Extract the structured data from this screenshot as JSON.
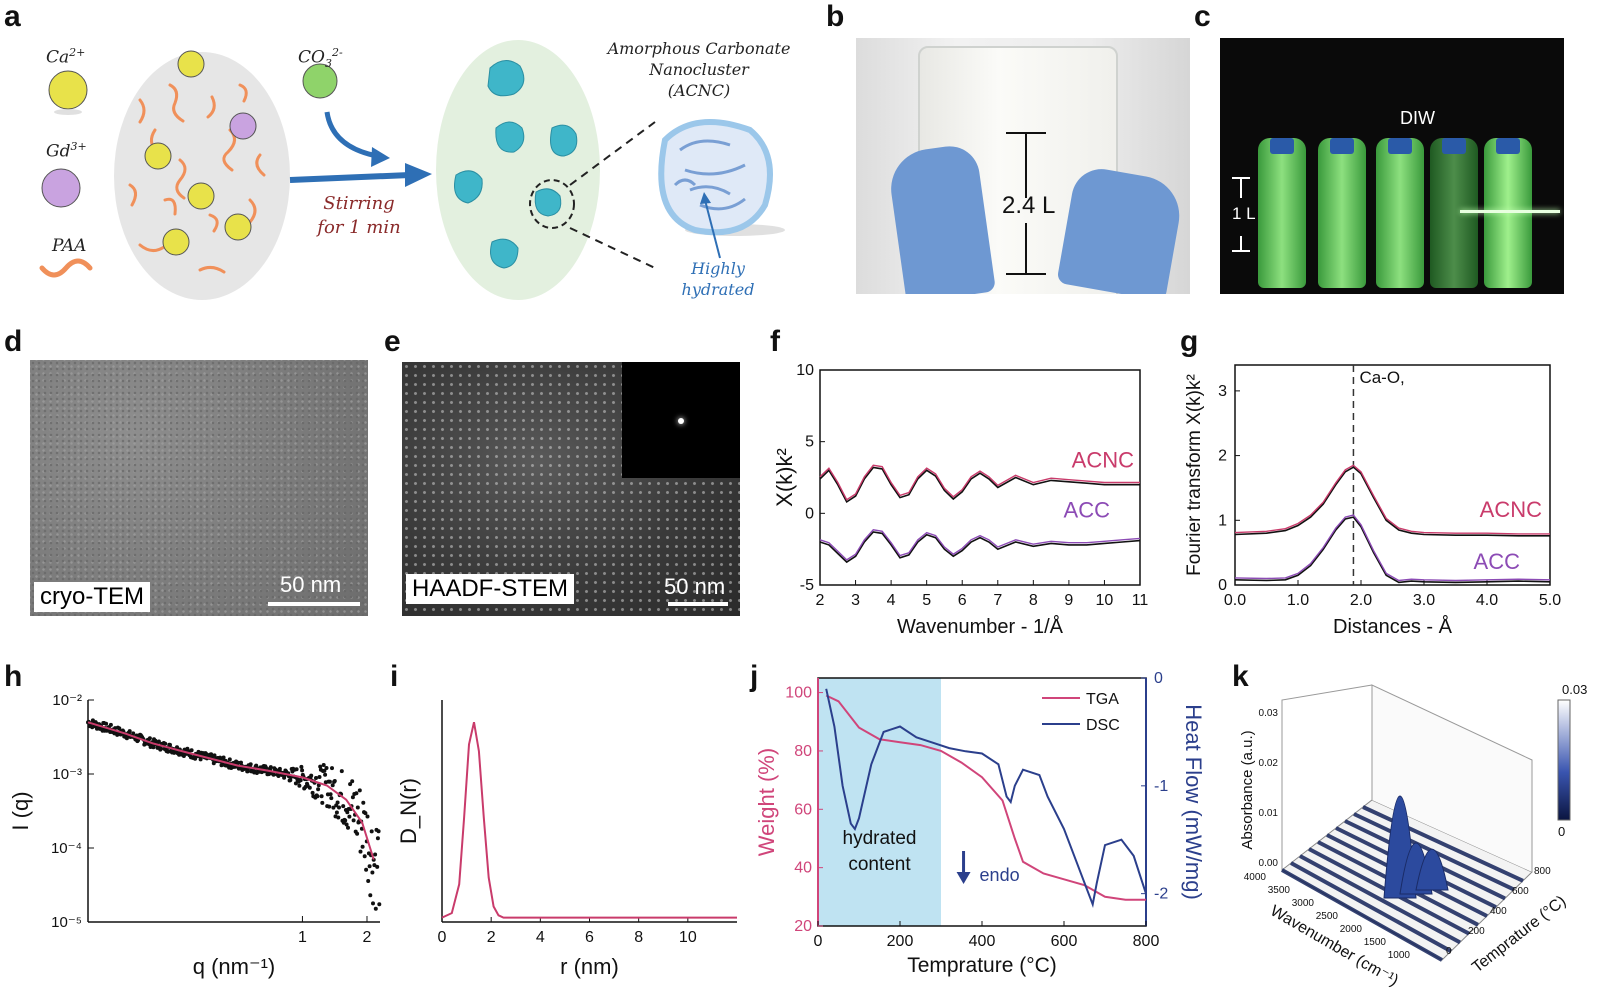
{
  "panels": {
    "a": "a",
    "b": "b",
    "c": "c",
    "d": "d",
    "e": "e",
    "f": "f",
    "g": "g",
    "h": "h",
    "i": "i",
    "j": "j",
    "k": "k"
  },
  "panel_a": {
    "ca": "Ca",
    "ca_sup": "2+",
    "gd": "Gd",
    "gd_sup": "3+",
    "paa": "PAA",
    "co3": "CO",
    "co3_sub": "3",
    "co3_sup": "2-",
    "stir_line1": "Stirring",
    "stir_line2": "for 1 min",
    "acnc_line1": "Amorphous Carbonate",
    "acnc_line2": "Nanocluster",
    "acnc_line3": "(ACNC)",
    "hyd_line1": "Highly",
    "hyd_line2": "hydrated",
    "colors": {
      "ca": "#e8e24a",
      "gd": "#c9a3e0",
      "co3": "#8fd36a",
      "paa": "#f0905a",
      "cluster": "#3fb6c9",
      "arrow": "#2e6fb5"
    }
  },
  "panel_b": {
    "volume": "2.4 L"
  },
  "panel_c": {
    "label": "DIW",
    "volume": "1 L"
  },
  "panel_d": {
    "label": "cryo-TEM",
    "scale": "50 nm"
  },
  "panel_e": {
    "label": "HAADF-STEM",
    "scale": "50 nm"
  },
  "chart_data": [
    {
      "id": "f",
      "type": "line",
      "xlabel": "Wavenumber - 1/Å",
      "ylabel": "X(k)k²",
      "xlim": [
        2,
        11
      ],
      "ylim": [
        -5,
        10
      ],
      "xticks": [
        "2",
        "3",
        "4",
        "5",
        "6",
        "7",
        "8",
        "9",
        "10",
        "11"
      ],
      "yticks": [
        "-5",
        "0",
        "5",
        "10"
      ],
      "series": [
        {
          "name": "ACNC",
          "color": "#c93b6b",
          "x": [
            2.0,
            2.25,
            2.5,
            2.75,
            3.0,
            3.25,
            3.5,
            3.75,
            4.0,
            4.25,
            4.5,
            4.75,
            5.0,
            5.25,
            5.5,
            5.75,
            6.0,
            6.25,
            6.5,
            6.75,
            7.0,
            7.5,
            8.0,
            8.5,
            9.0,
            9.5,
            10.0,
            10.5,
            11.0
          ],
          "values": [
            2.4,
            3.0,
            2.0,
            0.8,
            1.2,
            2.4,
            3.2,
            3.1,
            2.0,
            1.1,
            1.3,
            2.4,
            3.0,
            2.6,
            1.6,
            1.0,
            1.5,
            2.4,
            2.8,
            2.4,
            1.8,
            2.5,
            2.0,
            2.3,
            2.2,
            2.1,
            2.0,
            2.0,
            2.0
          ]
        },
        {
          "name": "ACC",
          "color": "#8c4bb5",
          "x": [
            2.0,
            2.25,
            2.5,
            2.75,
            3.0,
            3.25,
            3.5,
            3.75,
            4.0,
            4.25,
            4.5,
            4.75,
            5.0,
            5.25,
            5.5,
            5.75,
            6.0,
            6.25,
            6.5,
            6.75,
            7.0,
            7.5,
            8.0,
            8.5,
            9.0,
            9.5,
            10.0,
            10.5,
            11.0
          ],
          "values": [
            -2.0,
            -2.2,
            -2.8,
            -3.4,
            -3.0,
            -2.0,
            -1.3,
            -1.4,
            -2.2,
            -3.1,
            -2.9,
            -2.0,
            -1.5,
            -1.7,
            -2.5,
            -3.0,
            -2.6,
            -2.0,
            -1.7,
            -2.0,
            -2.5,
            -2.0,
            -2.3,
            -2.1,
            -2.2,
            -2.2,
            -2.1,
            -2.0,
            -1.9
          ]
        }
      ],
      "legend": [
        "ACNC",
        "ACC"
      ]
    },
    {
      "id": "g",
      "type": "line",
      "xlabel": "Distances - Å",
      "ylabel": "Fourier transform X(k)k²",
      "xlim": [
        0,
        5
      ],
      "ylim": [
        0,
        3.4
      ],
      "xticks": [
        "0.0",
        "1.0",
        "2.0",
        "3.0",
        "4.0",
        "5.0"
      ],
      "yticks": [
        "0",
        "1",
        "2",
        "3"
      ],
      "annotation": "Ca-O,",
      "marker_x": 1.88,
      "series": [
        {
          "name": "ACNC",
          "color": "#c93b6b",
          "x": [
            0.0,
            0.5,
            0.8,
            1.0,
            1.2,
            1.4,
            1.6,
            1.75,
            1.88,
            2.0,
            2.2,
            2.4,
            2.6,
            2.8,
            3.0,
            3.5,
            4.0,
            4.5,
            5.0
          ],
          "values": [
            0.78,
            0.8,
            0.84,
            0.92,
            1.05,
            1.25,
            1.55,
            1.75,
            1.82,
            1.72,
            1.35,
            1.0,
            0.85,
            0.8,
            0.78,
            0.77,
            0.77,
            0.76,
            0.76
          ]
        },
        {
          "name": "ACC",
          "color": "#8c4bb5",
          "x": [
            0.0,
            0.5,
            0.8,
            1.0,
            1.2,
            1.4,
            1.6,
            1.75,
            1.88,
            2.0,
            2.2,
            2.4,
            2.6,
            2.8,
            3.0,
            3.5,
            4.0,
            4.5,
            5.0
          ],
          "values": [
            0.08,
            0.07,
            0.08,
            0.15,
            0.3,
            0.55,
            0.85,
            1.02,
            1.05,
            0.9,
            0.5,
            0.15,
            0.04,
            0.06,
            0.05,
            0.04,
            0.05,
            0.06,
            0.05
          ]
        }
      ],
      "legend": [
        "ACNC",
        "ACC"
      ]
    },
    {
      "id": "h",
      "type": "scatter",
      "xlabel": "q (nm⁻¹)",
      "ylabel": "I (q)",
      "xscale": "log",
      "yscale": "log",
      "xlim": [
        0.1,
        2.3
      ],
      "ylim": [
        1e-05,
        0.01
      ],
      "xticks": [
        "1",
        "2"
      ],
      "yticks": [
        "10⁻⁵",
        "10⁻⁴",
        "10⁻³",
        "10⁻²"
      ],
      "series": [
        {
          "name": "fit",
          "color": "#c93b6b",
          "x": [
            0.1,
            0.15,
            0.2,
            0.3,
            0.5,
            0.7,
            1.0,
            1.3,
            1.6,
            1.9,
            2.15
          ],
          "values": [
            0.005,
            0.0035,
            0.0026,
            0.0019,
            0.0013,
            0.0011,
            0.0009,
            0.0007,
            0.00045,
            0.00022,
            7e-05
          ]
        }
      ]
    },
    {
      "id": "i",
      "type": "line",
      "xlabel": "r (nm)",
      "ylabel": "D_N(r)",
      "xlim": [
        0,
        12
      ],
      "ylim": [
        0,
        1
      ],
      "xticks": [
        "0",
        "2",
        "4",
        "6",
        "8",
        "10"
      ],
      "series": [
        {
          "name": "DN",
          "color": "#c93b6b",
          "x": [
            0,
            0.4,
            0.7,
            0.9,
            1.1,
            1.3,
            1.5,
            1.7,
            1.9,
            2.1,
            2.3,
            2.5,
            2.8,
            4,
            8,
            12
          ],
          "values": [
            0.0,
            0.02,
            0.15,
            0.45,
            0.78,
            0.88,
            0.75,
            0.45,
            0.18,
            0.05,
            0.01,
            0.0,
            0.0,
            0.0,
            0.0,
            0.0
          ]
        }
      ]
    },
    {
      "id": "j",
      "type": "line",
      "xlabel": "Temprature (°C)",
      "ylabel": "Weight (%)",
      "ylabel2": "Heat Flow (mW/mg)",
      "xlim": [
        0,
        800
      ],
      "ylim": [
        20,
        105
      ],
      "ylim2": [
        -2.3,
        0
      ],
      "xticks": [
        "0",
        "200",
        "400",
        "600",
        "800"
      ],
      "yticks": [
        "20",
        "40",
        "60",
        "80",
        "100"
      ],
      "yticks2": [
        "0",
        "-1",
        "-2"
      ],
      "shade_range": [
        0,
        300
      ],
      "shade_label1": "hydrated",
      "shade_label2": "content",
      "endo_label": "endo",
      "series": [
        {
          "name": "TGA",
          "color": "#d0457a",
          "axis": "left",
          "x": [
            20,
            50,
            100,
            150,
            200,
            250,
            300,
            350,
            400,
            450,
            480,
            500,
            550,
            600,
            650,
            700,
            750,
            800
          ],
          "values": [
            99,
            97,
            88,
            84,
            83,
            82,
            80,
            76,
            71,
            63,
            50,
            42,
            38,
            36,
            34,
            30,
            29,
            29
          ]
        },
        {
          "name": "DSC",
          "color": "#2b3f8c",
          "axis": "right",
          "x": [
            20,
            40,
            60,
            80,
            90,
            100,
            130,
            160,
            200,
            240,
            280,
            320,
            360,
            400,
            440,
            460,
            470,
            480,
            500,
            540,
            560,
            600,
            630,
            660,
            670,
            680,
            700,
            740,
            770,
            800
          ],
          "values": [
            -0.1,
            -0.45,
            -1.0,
            -1.35,
            -1.4,
            -1.3,
            -0.8,
            -0.5,
            -0.45,
            -0.55,
            -0.6,
            -0.65,
            -0.68,
            -0.7,
            -0.8,
            -1.1,
            -1.15,
            -1.0,
            -0.85,
            -0.9,
            -1.1,
            -1.4,
            -1.7,
            -2.0,
            -2.1,
            -1.9,
            -1.55,
            -1.5,
            -1.65,
            -2.0
          ]
        }
      ],
      "legend": [
        "TGA",
        "DSC"
      ]
    },
    {
      "id": "k",
      "type": "heatmap",
      "title": "",
      "xlabel": "Wavenumber (cm⁻¹)",
      "ylabel": "Absorbance (a.u.)",
      "zlabel": "Temprature (°C)",
      "xticks": [
        "4000",
        "3500",
        "3000",
        "2500",
        "2000",
        "1500",
        "1000"
      ],
      "zticks": [
        "0",
        "200",
        "400",
        "600",
        "800"
      ],
      "yticks": [
        "0.00",
        "0.01",
        "0.02",
        "0.03"
      ],
      "colorbar_ticks": [
        "0.03",
        "0"
      ],
      "peaks": [
        {
          "wavenumber": 1500,
          "temperature": 50,
          "absorbance": 0.03
        },
        {
          "wavenumber": 1100,
          "temperature": 50,
          "absorbance": 0.015
        },
        {
          "wavenumber": 1700,
          "temperature": 50,
          "absorbance": 0.012
        }
      ]
    }
  ]
}
